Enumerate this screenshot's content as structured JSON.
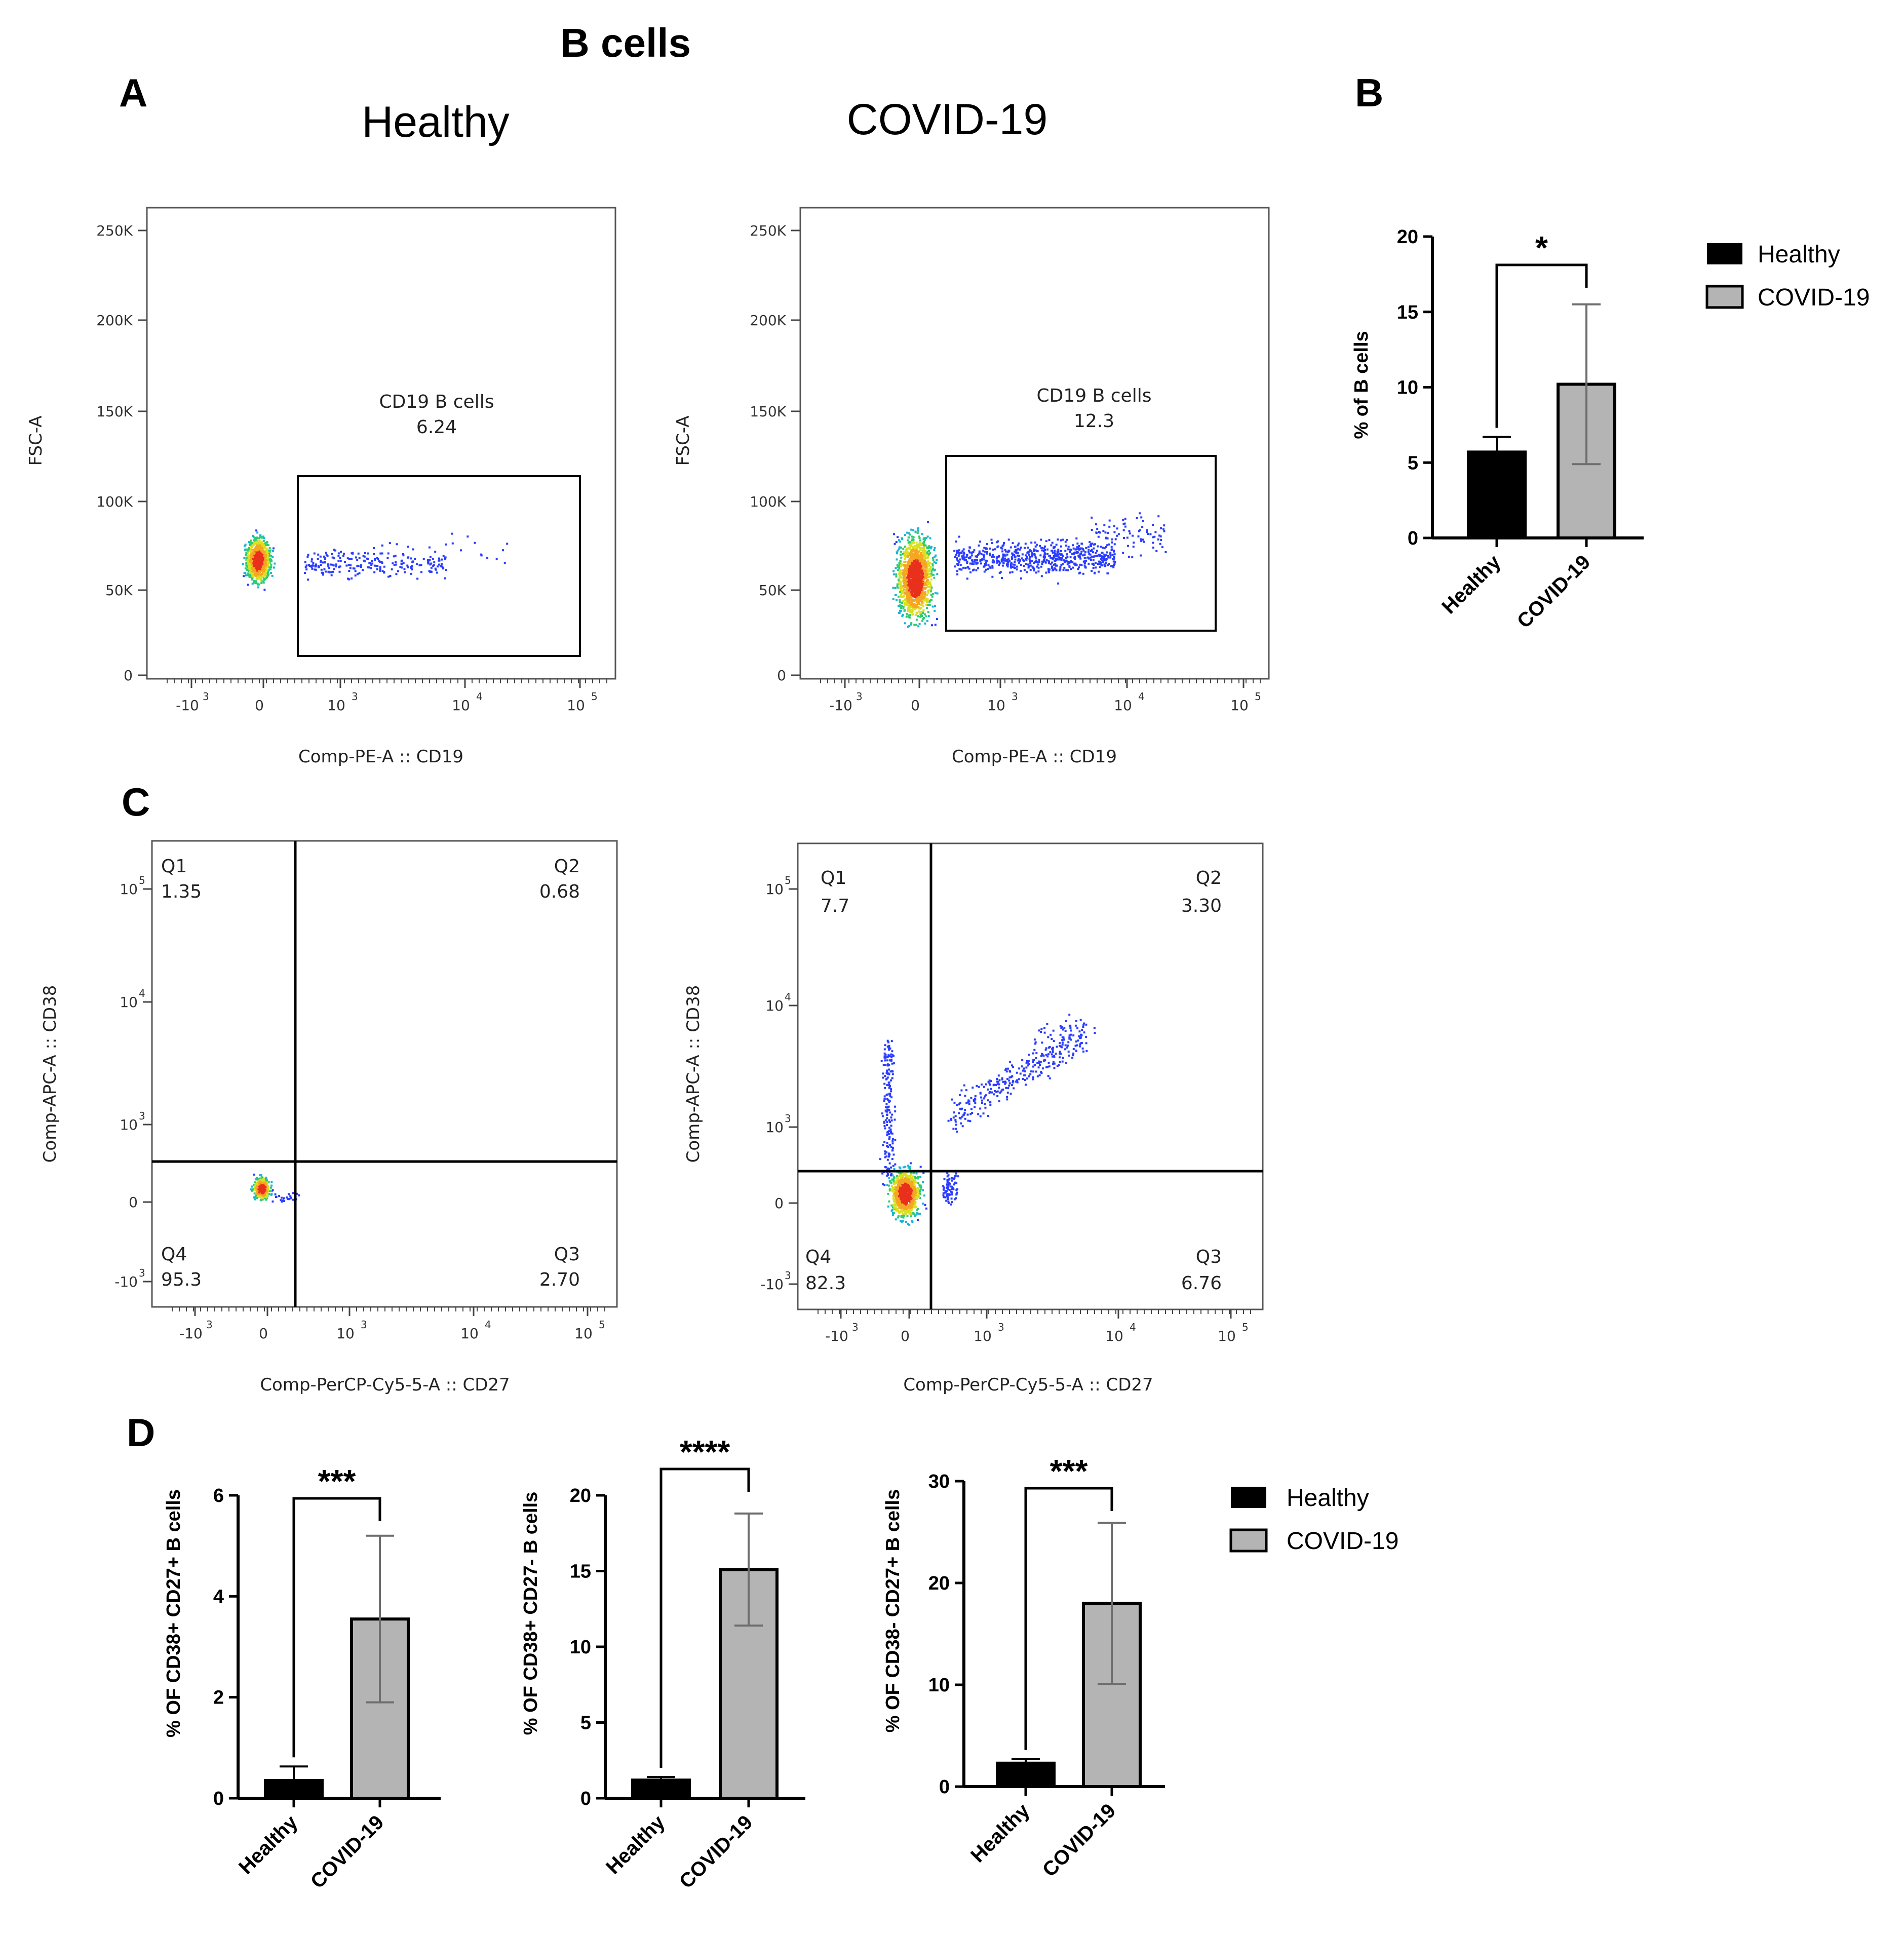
{
  "figure": {
    "title": "B cells"
  },
  "panel_labels": {
    "a": "A",
    "b": "B",
    "c": "C",
    "d": "D"
  },
  "conditions": {
    "healthy": "Healthy",
    "covid": "COVID-19"
  },
  "chart_data": [
    {
      "id": "A-healthy",
      "type": "scatter",
      "title": "Healthy",
      "xlabel": "Comp-PE-A :: CD19",
      "ylabel": "FSC-A",
      "x_ticks": [
        "-10",
        "0",
        "10",
        "10",
        "10"
      ],
      "x_tick_exponents": [
        "3",
        "",
        "3",
        "4",
        "5"
      ],
      "y_ticks": [
        "250K",
        "200K",
        "150K",
        "100K",
        "50K",
        "0"
      ],
      "gate": {
        "name": "CD19 B cells",
        "value": "6.24"
      },
      "points_note": "density cluster at CD19 ~0, FSC ~65K; B-cell tail up to ~10^4"
    },
    {
      "id": "A-covid",
      "type": "scatter",
      "title": "COVID-19",
      "xlabel": "Comp-PE-A :: CD19",
      "ylabel": "FSC-A",
      "x_ticks": [
        "-10",
        "0",
        "10",
        "10",
        "10"
      ],
      "x_tick_exponents": [
        "3",
        "",
        "3",
        "4",
        "5"
      ],
      "y_ticks": [
        "250K",
        "200K",
        "150K",
        "100K",
        "50K",
        "0"
      ],
      "gate": {
        "name": "CD19 B cells",
        "value": "12.3"
      }
    },
    {
      "id": "B",
      "type": "bar",
      "categories": [
        "Healthy",
        "COVID-19"
      ],
      "values": [
        5.7,
        10.2
      ],
      "errors": [
        1.0,
        5.3
      ],
      "ylabel": "% of  B cells",
      "ylim": [
        0,
        20
      ],
      "yticks": [
        "20",
        "15",
        "10",
        "5",
        "0"
      ],
      "significance": "*",
      "legend": [
        "Healthy",
        "COVID-19"
      ]
    },
    {
      "id": "C-healthy",
      "type": "scatter",
      "xlabel": "Comp-PerCP-Cy5-5-A :: CD27",
      "ylabel": "Comp-APC-A :: CD38",
      "x_ticks": [
        "-10",
        "0",
        "10",
        "10",
        "10"
      ],
      "x_tick_exponents": [
        "3",
        "",
        "3",
        "4",
        "5"
      ],
      "y_ticks": [
        "10",
        "10",
        "10",
        "0",
        "-10"
      ],
      "y_tick_exponents": [
        "5",
        "4",
        "3",
        "",
        "3"
      ],
      "quadrants": [
        {
          "name": "Q1",
          "value": "1.35"
        },
        {
          "name": "Q2",
          "value": "0.68"
        },
        {
          "name": "Q3",
          "value": "2.70"
        },
        {
          "name": "Q4",
          "value": "95.3"
        }
      ]
    },
    {
      "id": "C-covid",
      "type": "scatter",
      "xlabel": "Comp-PerCP-Cy5-5-A :: CD27",
      "ylabel": "Comp-APC-A :: CD38",
      "x_ticks": [
        "-10",
        "0",
        "10",
        "10",
        "10"
      ],
      "x_tick_exponents": [
        "3",
        "",
        "3",
        "4",
        "5"
      ],
      "y_ticks": [
        "10",
        "10",
        "10",
        "0",
        "-10"
      ],
      "y_tick_exponents": [
        "5",
        "4",
        "3",
        "",
        "3"
      ],
      "quadrants": [
        {
          "name": "Q1",
          "value": "7.7"
        },
        {
          "name": "Q2",
          "value": "3.30"
        },
        {
          "name": "Q3",
          "value": "6.76"
        },
        {
          "name": "Q4",
          "value": "82.3"
        }
      ]
    },
    {
      "id": "D1",
      "type": "bar",
      "categories": [
        "Healthy",
        "COVID-19"
      ],
      "values": [
        0.35,
        3.55
      ],
      "errors": [
        0.28,
        1.65
      ],
      "ylabel": "% OF CD38+ CD27+ B cells",
      "ylim": [
        0,
        6
      ],
      "yticks": [
        "6",
        "4",
        "2",
        "0"
      ],
      "significance": "***"
    },
    {
      "id": "D2",
      "type": "bar",
      "categories": [
        "Healthy",
        "COVID-19"
      ],
      "values": [
        1.2,
        15.1
      ],
      "errors": [
        0.2,
        3.7
      ],
      "ylabel": "% OF CD38+ CD27- B cells",
      "ylim": [
        0,
        20
      ],
      "yticks": [
        "20",
        "15",
        "10",
        "5",
        "0"
      ],
      "significance": "****"
    },
    {
      "id": "D3",
      "type": "bar",
      "categories": [
        "Healthy",
        "COVID-19"
      ],
      "values": [
        2.3,
        18.0
      ],
      "errors": [
        0.4,
        7.9
      ],
      "ylabel": "% OF CD38- CD27+ B cells",
      "ylim": [
        0,
        30
      ],
      "yticks": [
        "30",
        "20",
        "10",
        "0"
      ],
      "significance": "***",
      "legend": [
        "Healthy",
        "COVID-19"
      ]
    }
  ],
  "colors": {
    "healthy": "#000000",
    "covid": "#b4b4b4",
    "dots": "#2a3cff"
  }
}
